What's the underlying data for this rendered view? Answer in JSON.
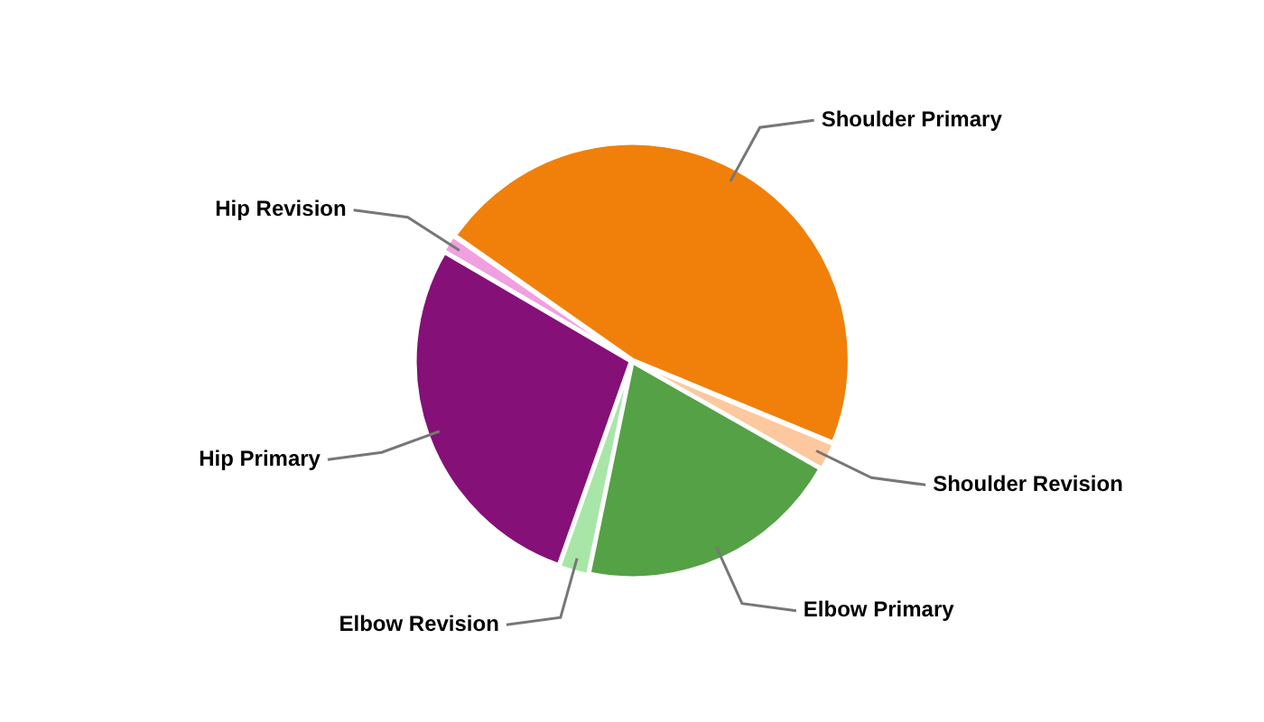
{
  "chart_data": {
    "type": "pie",
    "categories": [
      "Shoulder Primary",
      "Shoulder Revision",
      "Elbow Primary",
      "Elbow Revision",
      "Hip Primary",
      "Hip Revision"
    ],
    "values": [
      46.5,
      2,
      20,
      2.2,
      28,
      1.3
    ],
    "colors": [
      "#f0800a",
      "#fdc89e",
      "#55a145",
      "#a8e6a8",
      "#851078",
      "#f0a0e0"
    ],
    "legend": false
  }
}
